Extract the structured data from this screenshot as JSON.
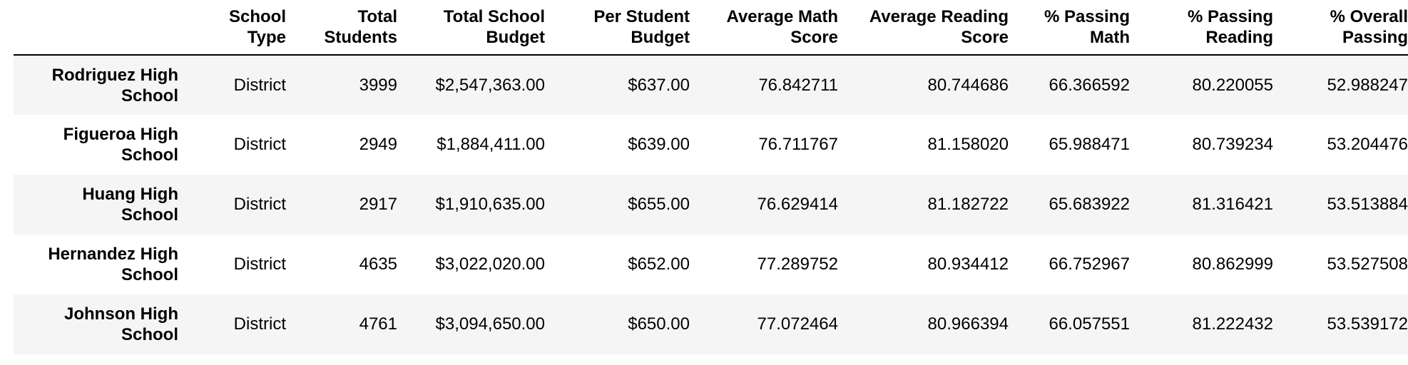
{
  "table": {
    "columns": [
      [
        "School",
        "Type"
      ],
      [
        "Total",
        "Students"
      ],
      [
        "Total School",
        "Budget"
      ],
      [
        "Per Student",
        "Budget"
      ],
      [
        "Average Math",
        "Score"
      ],
      [
        "Average Reading",
        "Score"
      ],
      [
        "% Passing",
        "Math"
      ],
      [
        "% Passing",
        "Reading"
      ],
      [
        "% Overall",
        "Passing"
      ]
    ],
    "rows": [
      {
        "name": [
          "Rodriguez High",
          "School"
        ],
        "cells": [
          "District",
          "3999",
          "$2,547,363.00",
          "$637.00",
          "76.842711",
          "80.744686",
          "66.366592",
          "80.220055",
          "52.988247"
        ]
      },
      {
        "name": [
          "Figueroa High",
          "School"
        ],
        "cells": [
          "District",
          "2949",
          "$1,884,411.00",
          "$639.00",
          "76.711767",
          "81.158020",
          "65.988471",
          "80.739234",
          "53.204476"
        ]
      },
      {
        "name": [
          "Huang High",
          "School"
        ],
        "cells": [
          "District",
          "2917",
          "$1,910,635.00",
          "$655.00",
          "76.629414",
          "81.182722",
          "65.683922",
          "81.316421",
          "53.513884"
        ]
      },
      {
        "name": [
          "Hernandez High",
          "School"
        ],
        "cells": [
          "District",
          "4635",
          "$3,022,020.00",
          "$652.00",
          "77.289752",
          "80.934412",
          "66.752967",
          "80.862999",
          "53.527508"
        ]
      },
      {
        "name": [
          "Johnson High",
          "School"
        ],
        "cells": [
          "District",
          "4761",
          "$3,094,650.00",
          "$650.00",
          "77.072464",
          "80.966394",
          "66.057551",
          "81.222432",
          "53.539172"
        ]
      }
    ]
  }
}
